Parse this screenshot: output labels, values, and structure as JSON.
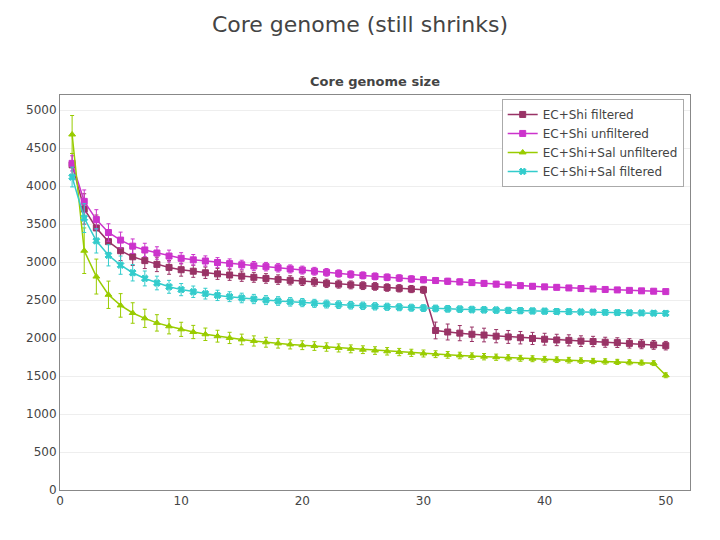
{
  "chart_data": {
    "type": "line",
    "title": "Core genome (still shrinks)",
    "subtitle": "Core genome size",
    "x": [
      1,
      2,
      3,
      4,
      5,
      6,
      7,
      8,
      9,
      10,
      11,
      12,
      13,
      14,
      15,
      16,
      17,
      18,
      19,
      20,
      21,
      22,
      23,
      24,
      25,
      26,
      27,
      28,
      29,
      30,
      31,
      32,
      33,
      34,
      35,
      36,
      37,
      38,
      39,
      40,
      41,
      42,
      43,
      44,
      45,
      46,
      47,
      48,
      49,
      50
    ],
    "xlim": [
      0,
      52
    ],
    "xticks": [
      0,
      10,
      20,
      30,
      40,
      50
    ],
    "ylim": [
      0,
      5200
    ],
    "yticks": [
      0,
      500,
      1000,
      1500,
      2000,
      2500,
      3000,
      3500,
      4000,
      4500,
      5000
    ],
    "grid": true,
    "legend": "upper right",
    "series": [
      {
        "name": "EC+Shi filtered",
        "color": "#993366",
        "marker": "square",
        "values": [
          4280,
          3700,
          3450,
          3270,
          3150,
          3070,
          3020,
          2970,
          2930,
          2900,
          2880,
          2860,
          2845,
          2830,
          2815,
          2800,
          2785,
          2770,
          2760,
          2750,
          2740,
          2720,
          2710,
          2700,
          2690,
          2680,
          2665,
          2655,
          2645,
          2635,
          2100,
          2080,
          2065,
          2050,
          2040,
          2025,
          2015,
          2005,
          1995,
          1985,
          1975,
          1970,
          1960,
          1955,
          1945,
          1940,
          1930,
          1920,
          1910,
          1900
        ],
        "errors": [
          150,
          200,
          170,
          150,
          130,
          115,
          105,
          95,
          90,
          85,
          80,
          75,
          72,
          70,
          68,
          65,
          63,
          62,
          60,
          58,
          57,
          55,
          53,
          52,
          51,
          50,
          49,
          48,
          47,
          46,
          110,
          105,
          100,
          95,
          90,
          87,
          85,
          82,
          80,
          78,
          75,
          73,
          70,
          68,
          66,
          64,
          62,
          60,
          58,
          56
        ]
      },
      {
        "name": "EC+Shi unfiltered",
        "color": "#cc33cc",
        "marker": "square",
        "values": [
          4300,
          3800,
          3560,
          3390,
          3290,
          3210,
          3160,
          3120,
          3080,
          3050,
          3030,
          3015,
          2995,
          2980,
          2965,
          2950,
          2940,
          2925,
          2910,
          2895,
          2880,
          2865,
          2850,
          2838,
          2825,
          2812,
          2800,
          2790,
          2778,
          2768,
          2758,
          2748,
          2740,
          2730,
          2720,
          2710,
          2700,
          2690,
          2682,
          2674,
          2668,
          2660,
          2652,
          2646,
          2640,
          2634,
          2628,
          2622,
          2617,
          2612
        ],
        "errors": [
          100,
          150,
          130,
          115,
          105,
          95,
          88,
          82,
          78,
          74,
          70,
          67,
          64,
          62,
          60,
          58,
          56,
          55,
          53,
          52,
          51,
          50,
          48,
          47,
          46,
          45,
          44,
          43,
          42,
          41,
          40,
          39,
          38,
          38,
          37,
          36,
          35,
          34,
          34,
          33,
          32,
          32,
          31,
          31,
          30,
          30,
          29,
          29,
          28,
          28
        ]
      },
      {
        "name": "EC+Shi+Sal unfiltered",
        "color": "#99cc00",
        "marker": "triangle-up",
        "values": [
          4680,
          3150,
          2810,
          2570,
          2430,
          2330,
          2260,
          2200,
          2155,
          2115,
          2080,
          2050,
          2025,
          2002,
          1982,
          1962,
          1945,
          1930,
          1917,
          1906,
          1895,
          1882,
          1870,
          1858,
          1847,
          1836,
          1826,
          1816,
          1806,
          1797,
          1788,
          1779,
          1771,
          1763,
          1755,
          1748,
          1741,
          1734,
          1728,
          1721,
          1715,
          1709,
          1703,
          1698,
          1692,
          1686,
          1681,
          1676,
          1670,
          1510
        ],
        "errors": [
          250,
          300,
          230,
          180,
          155,
          135,
          120,
          108,
          100,
          93,
          87,
          82,
          78,
          74,
          70,
          67,
          65,
          62,
          60,
          58,
          57,
          55,
          53,
          52,
          51,
          50,
          49,
          48,
          47,
          46,
          45,
          44,
          43,
          42,
          42,
          41,
          40,
          39,
          39,
          38,
          37,
          37,
          36,
          35,
          35,
          34,
          33,
          33,
          32,
          32
        ]
      },
      {
        "name": "EC+Shi+Sal filtered",
        "color": "#33cccc",
        "marker": "x",
        "values": [
          4120,
          3580,
          3280,
          3090,
          2960,
          2860,
          2785,
          2725,
          2675,
          2638,
          2610,
          2585,
          2562,
          2545,
          2528,
          2514,
          2500,
          2488,
          2477,
          2467,
          2457,
          2448,
          2440,
          2432,
          2425,
          2418,
          2412,
          2406,
          2400,
          2395,
          2390,
          2385,
          2381,
          2376,
          2372,
          2368,
          2364,
          2361,
          2357,
          2354,
          2350,
          2348,
          2344,
          2341,
          2338,
          2336,
          2333,
          2331,
          2328,
          2326
        ],
        "errors": [
          130,
          190,
          160,
          140,
          120,
          108,
          98,
          90,
          85,
          80,
          75,
          71,
          68,
          65,
          63,
          61,
          59,
          57,
          56,
          54,
          53,
          52,
          51,
          50,
          49,
          48,
          47,
          46,
          46,
          45,
          44,
          44,
          43,
          43,
          42,
          42,
          41,
          41,
          40,
          40,
          39,
          39,
          38,
          38,
          37,
          37,
          36,
          36,
          35,
          35
        ]
      }
    ]
  }
}
